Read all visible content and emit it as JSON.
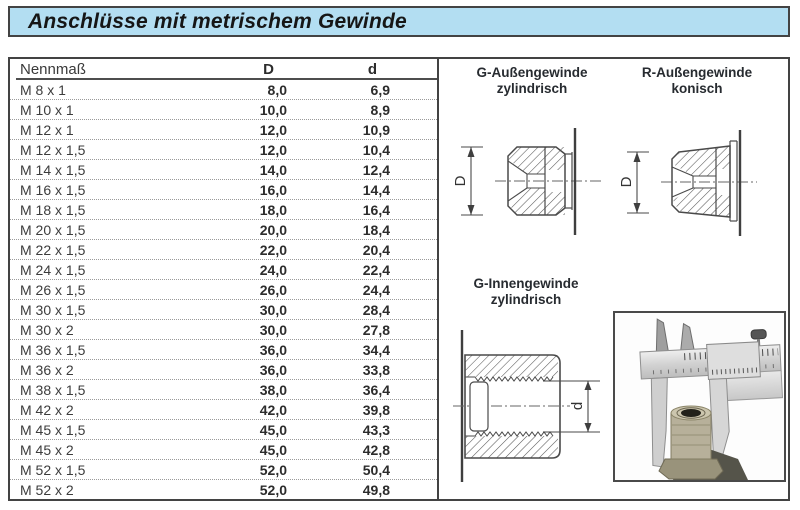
{
  "title": "Anschlüsse mit metrischem Gewinde",
  "table": {
    "headers": [
      "Nennmaß",
      "D",
      "d"
    ],
    "rows": [
      [
        "M 8 x 1",
        "8,0",
        "6,9"
      ],
      [
        "M 10 x 1",
        "10,0",
        "8,9"
      ],
      [
        "M 12 x 1",
        "12,0",
        "10,9"
      ],
      [
        "M 12 x 1,5",
        "12,0",
        "10,4"
      ],
      [
        "M 14 x 1,5",
        "14,0",
        "12,4"
      ],
      [
        "M 16 x 1,5",
        "16,0",
        "14,4"
      ],
      [
        "M 18 x 1,5",
        "18,0",
        "16,4"
      ],
      [
        "M 20 x 1,5",
        "20,0",
        "18,4"
      ],
      [
        "M 22 x 1,5",
        "22,0",
        "20,4"
      ],
      [
        "M 24 x 1,5",
        "24,0",
        "22,4"
      ],
      [
        "M 26 x 1,5",
        "26,0",
        "24,4"
      ],
      [
        "M 30 x 1,5",
        "30,0",
        "28,4"
      ],
      [
        "M 30 x 2",
        "30,0",
        "27,8"
      ],
      [
        "M 36 x 1,5",
        "36,0",
        "34,4"
      ],
      [
        "M 36 x 2",
        "36,0",
        "33,8"
      ],
      [
        "M 38 x 1,5",
        "38,0",
        "36,4"
      ],
      [
        "M 42 x 2",
        "42,0",
        "39,8"
      ],
      [
        "M 45 x 1,5",
        "45,0",
        "43,3"
      ],
      [
        "M 45 x 2",
        "45,0",
        "42,8"
      ],
      [
        "M 52 x 1,5",
        "52,0",
        "50,4"
      ],
      [
        "M 52 x 2",
        "52,0",
        "49,8"
      ]
    ]
  },
  "diagrams": {
    "g_male": {
      "line1": "G-Außengewinde",
      "line2": "zylindrisch",
      "dim": "D"
    },
    "r_male": {
      "line1": "R-Außengewinde",
      "line2": "konisch",
      "dim": "D"
    },
    "g_female": {
      "line1": "G-Innengewinde",
      "line2": "zylindrisch",
      "dim": "d"
    },
    "photo_icon": "caliper-measuring-fitting-photo"
  },
  "colors": {
    "title_bg": "#b3def2",
    "frame_border": "#434343",
    "text": "#3a3a3a",
    "dotted_separator": "#9a9a9a",
    "drawing_line": "#4a4a4a"
  }
}
